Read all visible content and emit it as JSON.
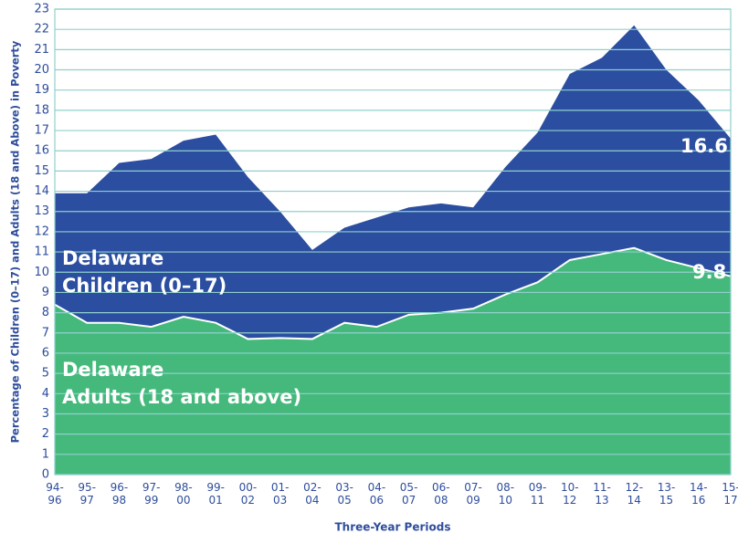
{
  "chart_data": {
    "type": "area",
    "x_label": "Three-Year Periods",
    "y_label": "Percentage of Children (0–17) and Adults (18 and Above) in Poverty",
    "categories": [
      "94-96",
      "95-97",
      "96-98",
      "97-99",
      "98-00",
      "99-01",
      "00-02",
      "01-03",
      "02-04",
      "03-05",
      "04-06",
      "05-07",
      "06-08",
      "07-09",
      "08-10",
      "09-11",
      "10-12",
      "11-13",
      "12-14",
      "13-15",
      "14-16",
      "15-17"
    ],
    "series": [
      {
        "name": "Delaware Children (0–17)",
        "color": "#2b4ea0",
        "values": [
          13.9,
          13.9,
          15.4,
          15.6,
          16.5,
          16.8,
          14.7,
          13.0,
          11.1,
          12.2,
          12.7,
          13.2,
          13.4,
          13.2,
          15.2,
          16.9,
          19.8,
          20.6,
          22.2,
          20.0,
          18.5,
          16.6
        ]
      },
      {
        "name": "Delaware Adults (18 and above)",
        "color": "#45b97c",
        "values": [
          8.4,
          7.5,
          7.5,
          7.3,
          7.8,
          7.5,
          6.7,
          6.75,
          6.7,
          7.5,
          7.3,
          7.9,
          8.0,
          8.2,
          8.9,
          9.5,
          10.6,
          10.9,
          11.2,
          10.6,
          10.2,
          9.8
        ]
      }
    ],
    "ylim": [
      0,
      23
    ],
    "yticks": [
      0,
      1,
      2,
      3,
      4,
      5,
      6,
      7,
      8,
      9,
      10,
      11,
      12,
      13,
      14,
      15,
      16,
      17,
      18,
      19,
      20,
      21,
      22,
      23
    ],
    "grid": true
  }
}
